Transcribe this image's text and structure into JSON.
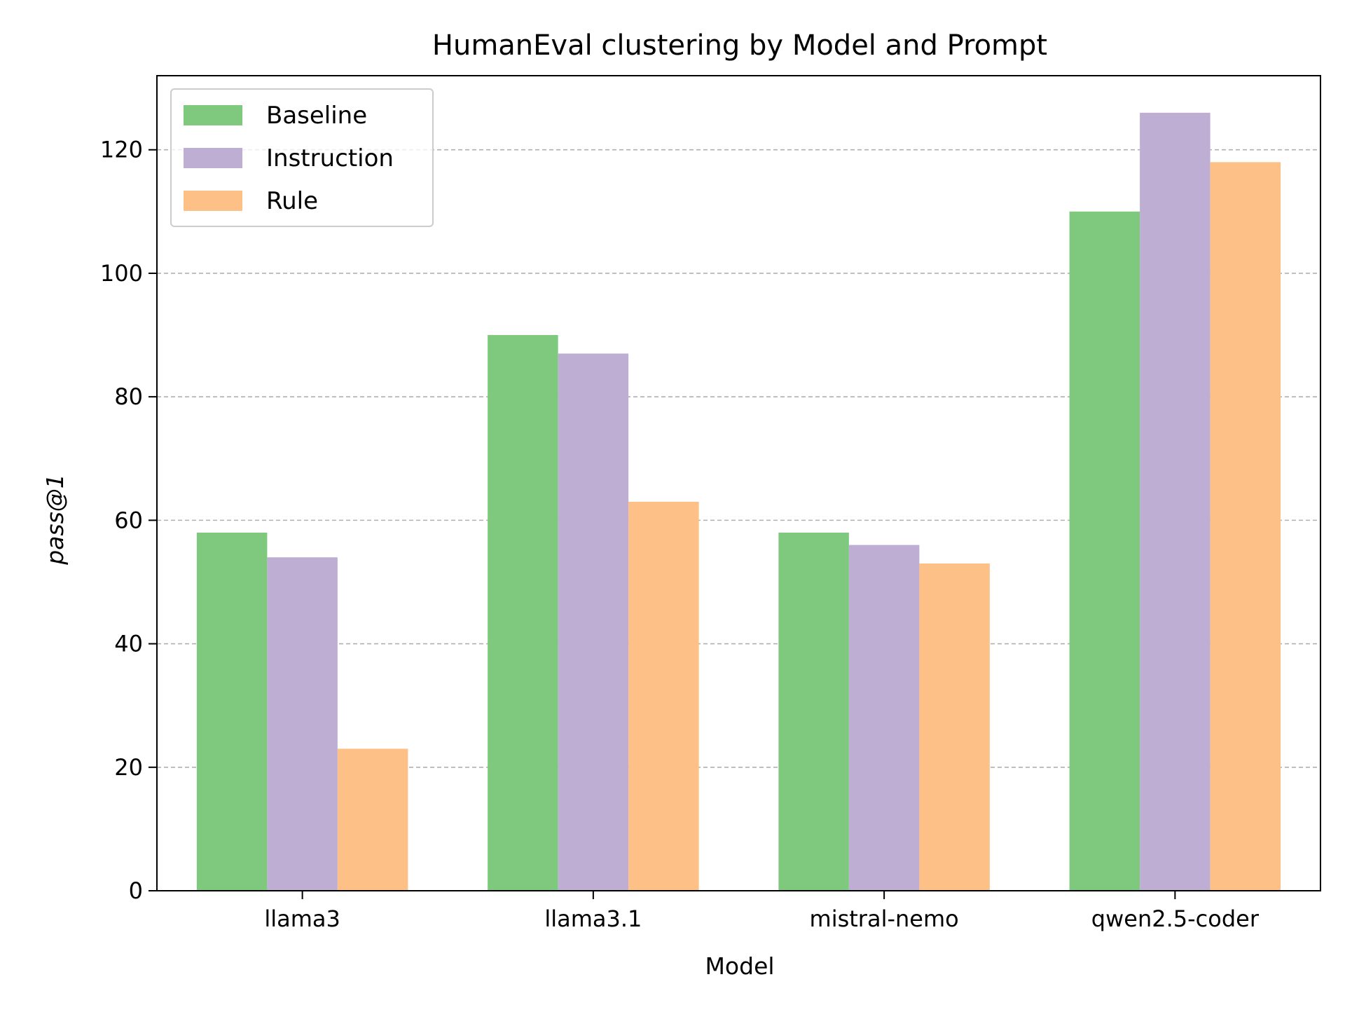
{
  "chart_data": {
    "type": "bar",
    "title": "HumanEval clustering by Model and Prompt",
    "xlabel": "Model",
    "ylabel": "pass@1",
    "categories": [
      "llama3",
      "llama3.1",
      "mistral-nemo",
      "qwen2.5-coder"
    ],
    "series": [
      {
        "name": "Baseline",
        "color": "#7fc97f",
        "values": [
          58,
          90,
          58,
          110
        ]
      },
      {
        "name": "Instruction",
        "color": "#beaed4",
        "values": [
          54,
          87,
          56,
          126
        ]
      },
      {
        "name": "Rule",
        "color": "#fdc086",
        "values": [
          23,
          63,
          53,
          118
        ]
      }
    ],
    "ylim": [
      0,
      132
    ],
    "yticks": [
      0,
      20,
      40,
      60,
      80,
      100,
      120
    ],
    "grid": {
      "axis": "y",
      "style": "dashed",
      "color": "#b0b0b0"
    },
    "legend": {
      "position": "top-left"
    }
  }
}
